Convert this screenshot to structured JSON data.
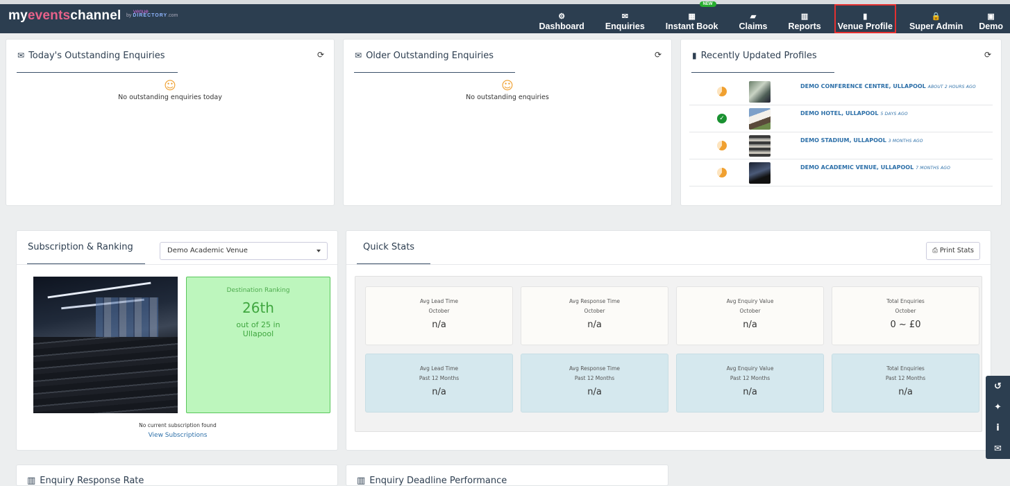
{
  "brand": {
    "logo_prefix": "my",
    "logo_accent": "events",
    "logo_suffix": "channel",
    "by": "by",
    "partner_top": "venue",
    "partner_main": "DIRECTORY",
    "partner_suffix": ".com"
  },
  "nav": {
    "items": [
      {
        "label": "Dashboard",
        "icon": "⚙"
      },
      {
        "label": "Enquiries",
        "icon": "✉"
      },
      {
        "label": "Instant Book",
        "icon": "▦",
        "badge": "NEW"
      },
      {
        "label": "Claims",
        "icon": "▰"
      },
      {
        "label": "Reports",
        "icon": "▥"
      },
      {
        "label": "Venue Profile",
        "icon": "▮"
      },
      {
        "label": "Super Admin",
        "icon": "🔒"
      },
      {
        "label": "Demo",
        "icon": "▣"
      }
    ],
    "active": "Venue Profile"
  },
  "today_enquiries": {
    "title": "Today's Outstanding Enquiries",
    "icon": "envelope-icon",
    "empty_text": "No outstanding enquiries today"
  },
  "older_enquiries": {
    "title": "Older Outstanding Enquiries",
    "icon": "envelope-icon",
    "empty_text": "No outstanding enquiries"
  },
  "recent_profiles": {
    "title": "Recently Updated Profiles",
    "icon": "building-icon",
    "items": [
      {
        "name": "DEMO CONFERENCE CENTRE, ULLAPOOL",
        "time": "ABOUT 2 HOURS AGO",
        "status": "pending"
      },
      {
        "name": "DEMO HOTEL, ULLAPOOL",
        "time": "5 DAYS AGO",
        "status": "complete"
      },
      {
        "name": "DEMO STADIUM, ULLAPOOL",
        "time": "3 MONTHS AGO",
        "status": "pending"
      },
      {
        "name": "DEMO ACADEMIC VENUE, ULLAPOOL",
        "time": "7 MONTHS AGO",
        "status": "pending"
      }
    ]
  },
  "subscription": {
    "title": "Subscription & Ranking",
    "selected_venue": "Demo Academic Venue",
    "ranking_label": "Destination Ranking",
    "ranking_value": "26th",
    "ranking_sub": "out of 25 in Ullapool",
    "no_subscription": "No current subscription found",
    "view_link": "View Subscriptions"
  },
  "quick_stats": {
    "title": "Quick Stats",
    "print_label": "Print Stats",
    "monthly": [
      {
        "label": "Avg Lead Time",
        "period": "October",
        "value": "n/a"
      },
      {
        "label": "Avg Response Time",
        "period": "October",
        "value": "n/a"
      },
      {
        "label": "Avg Enquiry Value",
        "period": "October",
        "value": "n/a"
      },
      {
        "label": "Total Enquiries",
        "period": "October",
        "value": "0 ~ £0"
      }
    ],
    "yearly": [
      {
        "label": "Avg Lead Time",
        "period": "Past 12 Months",
        "value": "n/a"
      },
      {
        "label": "Avg Response Time",
        "period": "Past 12 Months",
        "value": "n/a"
      },
      {
        "label": "Avg Enquiry Value",
        "period": "Past 12 Months",
        "value": "n/a"
      },
      {
        "label": "Total Enquiries",
        "period": "Past 12 Months",
        "value": "n/a"
      }
    ]
  },
  "bottom": {
    "response_rate_title": "Enquiry Response Rate",
    "deadline_title": "Enquiry Deadline Performance"
  },
  "dock": [
    "history-icon",
    "chat-icon",
    "info-icon",
    "mail-icon"
  ]
}
